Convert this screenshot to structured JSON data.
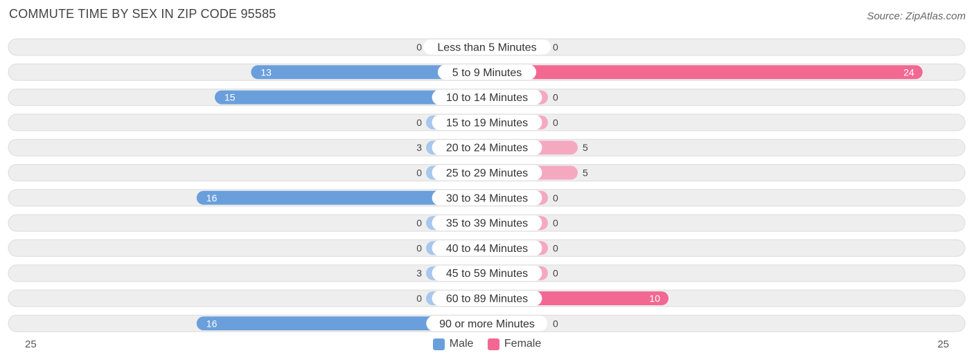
{
  "header": {
    "title": "COMMUTE TIME BY SEX IN ZIP CODE 95585",
    "source": "Source: ZipAtlas.com"
  },
  "colors": {
    "male_strong": "#6a9fdc",
    "male_light": "#a9c7ec",
    "female_strong": "#f26893",
    "female_light": "#f5a9c1",
    "row_bg": "#eeeeee",
    "row_border": "#dcdcdc"
  },
  "chart_data": {
    "type": "bar",
    "orientation": "horizontal-diverging",
    "categories": [
      "Less than 5 Minutes",
      "5 to 9 Minutes",
      "10 to 14 Minutes",
      "15 to 19 Minutes",
      "20 to 24 Minutes",
      "25 to 29 Minutes",
      "30 to 34 Minutes",
      "35 to 39 Minutes",
      "40 to 44 Minutes",
      "45 to 59 Minutes",
      "60 to 89 Minutes",
      "90 or more Minutes"
    ],
    "series": [
      {
        "name": "Male",
        "values": [
          0,
          13,
          15,
          0,
          3,
          0,
          16,
          0,
          0,
          3,
          0,
          16
        ]
      },
      {
        "name": "Female",
        "values": [
          0,
          24,
          0,
          0,
          5,
          5,
          0,
          0,
          0,
          0,
          10,
          0
        ]
      }
    ],
    "axis": {
      "left_label": "25",
      "right_label": "25",
      "max": 25
    },
    "legend": [
      "Male",
      "Female"
    ],
    "legend_position": "bottom-center"
  }
}
